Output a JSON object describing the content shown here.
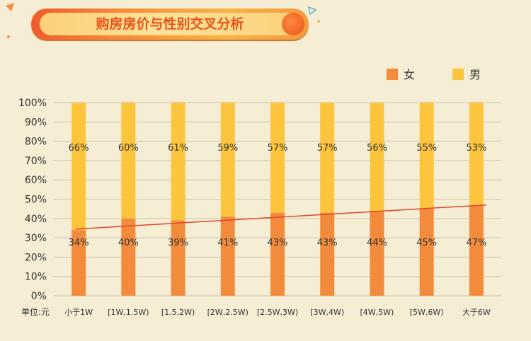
{
  "title": "购房房价与性别交叉分析",
  "unit_label": "单位:元",
  "colors": {
    "female": "#f28c3c",
    "male": "#fcc53d",
    "trend": "#e0462c",
    "grid": "#c9c3b0"
  },
  "chart_data": {
    "type": "bar",
    "stacked": true,
    "categories": [
      "小于1W",
      "[1W,1.5W)",
      "[1.5,2W)",
      "[2W,2.5W)",
      "[2.5W,3W)",
      "[3W,4W)",
      "[4W,5W)",
      "[5W,6W)",
      "大于6W"
    ],
    "series": [
      {
        "name": "女",
        "values": [
          34,
          40,
          39,
          41,
          43,
          43,
          44,
          45,
          47
        ],
        "labels": [
          "34%",
          "40%",
          "39%",
          "41%",
          "43%",
          "43%",
          "44%",
          "45%",
          "47%"
        ]
      },
      {
        "name": "男",
        "values": [
          66,
          60,
          61,
          59,
          57,
          57,
          56,
          55,
          53
        ],
        "labels": [
          "66%",
          "60%",
          "61%",
          "59%",
          "57%",
          "57%",
          "56%",
          "55%",
          "53%"
        ]
      }
    ],
    "trendline": {
      "series": "女",
      "start": 34.5,
      "end": 47
    },
    "ylim": [
      0,
      100
    ],
    "yticks": [
      "0%",
      "10%",
      "20%",
      "30%",
      "40%",
      "50%",
      "60%",
      "70%",
      "80%",
      "90%",
      "100%"
    ],
    "legend_position": "top-right"
  }
}
